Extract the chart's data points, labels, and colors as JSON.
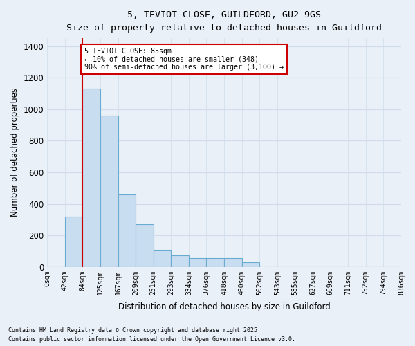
{
  "title1": "5, TEVIOT CLOSE, GUILDFORD, GU2 9GS",
  "title2": "Size of property relative to detached houses in Guildford",
  "xlabel": "Distribution of detached houses by size in Guildford",
  "ylabel": "Number of detached properties",
  "bin_labels": [
    "0sqm",
    "42sqm",
    "84sqm",
    "125sqm",
    "167sqm",
    "209sqm",
    "251sqm",
    "293sqm",
    "334sqm",
    "376sqm",
    "418sqm",
    "460sqm",
    "502sqm",
    "543sqm",
    "585sqm",
    "627sqm",
    "669sqm",
    "711sqm",
    "752sqm",
    "794sqm",
    "836sqm"
  ],
  "bar_heights": [
    0,
    320,
    1130,
    960,
    460,
    270,
    110,
    75,
    55,
    55,
    55,
    30,
    0,
    0,
    0,
    0,
    0,
    0,
    0,
    0
  ],
  "bar_color": "#c9ddf0",
  "bar_edge_color": "#6aabd2",
  "background_color": "#eaf0f8",
  "grid_color": "#d0dcec",
  "ylim": [
    0,
    1450
  ],
  "yticks": [
    0,
    200,
    400,
    600,
    800,
    1000,
    1200,
    1400
  ],
  "property_line_color": "#cc0000",
  "annotation_text": "5 TEVIOT CLOSE: 85sqm\n← 10% of detached houses are smaller (348)\n90% of semi-detached houses are larger (3,100) →",
  "annotation_box_color": "#ffffff",
  "annotation_box_edge_color": "#cc0000",
  "footnote1": "Contains HM Land Registry data © Crown copyright and database right 2025.",
  "footnote2": "Contains public sector information licensed under the Open Government Licence v3.0."
}
